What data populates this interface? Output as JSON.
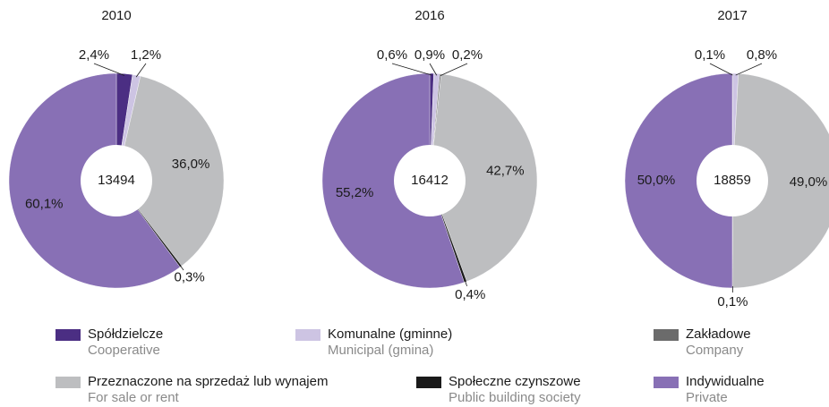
{
  "chart_data": [
    {
      "type": "pie",
      "donut": true,
      "title": "2010",
      "total": "13494",
      "values": [
        2.4,
        1.2,
        null,
        36.0,
        0.3,
        60.1
      ],
      "value_labels": [
        "2,4%",
        "1,2%",
        null,
        "36,0%",
        "0,3%",
        "60,1%"
      ]
    },
    {
      "type": "pie",
      "donut": true,
      "title": "2016",
      "total": "16412",
      "values": [
        0.6,
        0.9,
        0.2,
        42.7,
        0.4,
        55.2
      ],
      "value_labels": [
        "0,6%",
        "0,9%",
        "0,2%",
        "42,7%",
        "0,4%",
        "55,2%"
      ]
    },
    {
      "type": "pie",
      "donut": true,
      "title": "2017",
      "total": "18859",
      "values": [
        0.1,
        0.8,
        null,
        49.0,
        0.1,
        50.0
      ],
      "value_labels": [
        "0,1%",
        "0,8%",
        null,
        "49,0%",
        "0,1%",
        "50,0%"
      ]
    }
  ],
  "legend": {
    "labels": [
      "Spółdzielcze",
      "Komunalne (gminne)",
      "Zakładowe",
      "Przeznaczone na sprzedaż lub wynajem",
      "Społeczne czynszowe",
      "Indywidualne"
    ],
    "sublabels": [
      "Cooperative",
      "Municipal (gmina)",
      "Company",
      "For sale or rent",
      "Public building society",
      "Private"
    ],
    "colors": [
      "#4b2e83",
      "#cdc4e3",
      "#6b6b6b",
      "#bdbec0",
      "#1a1a1a",
      "#8870b5"
    ]
  }
}
